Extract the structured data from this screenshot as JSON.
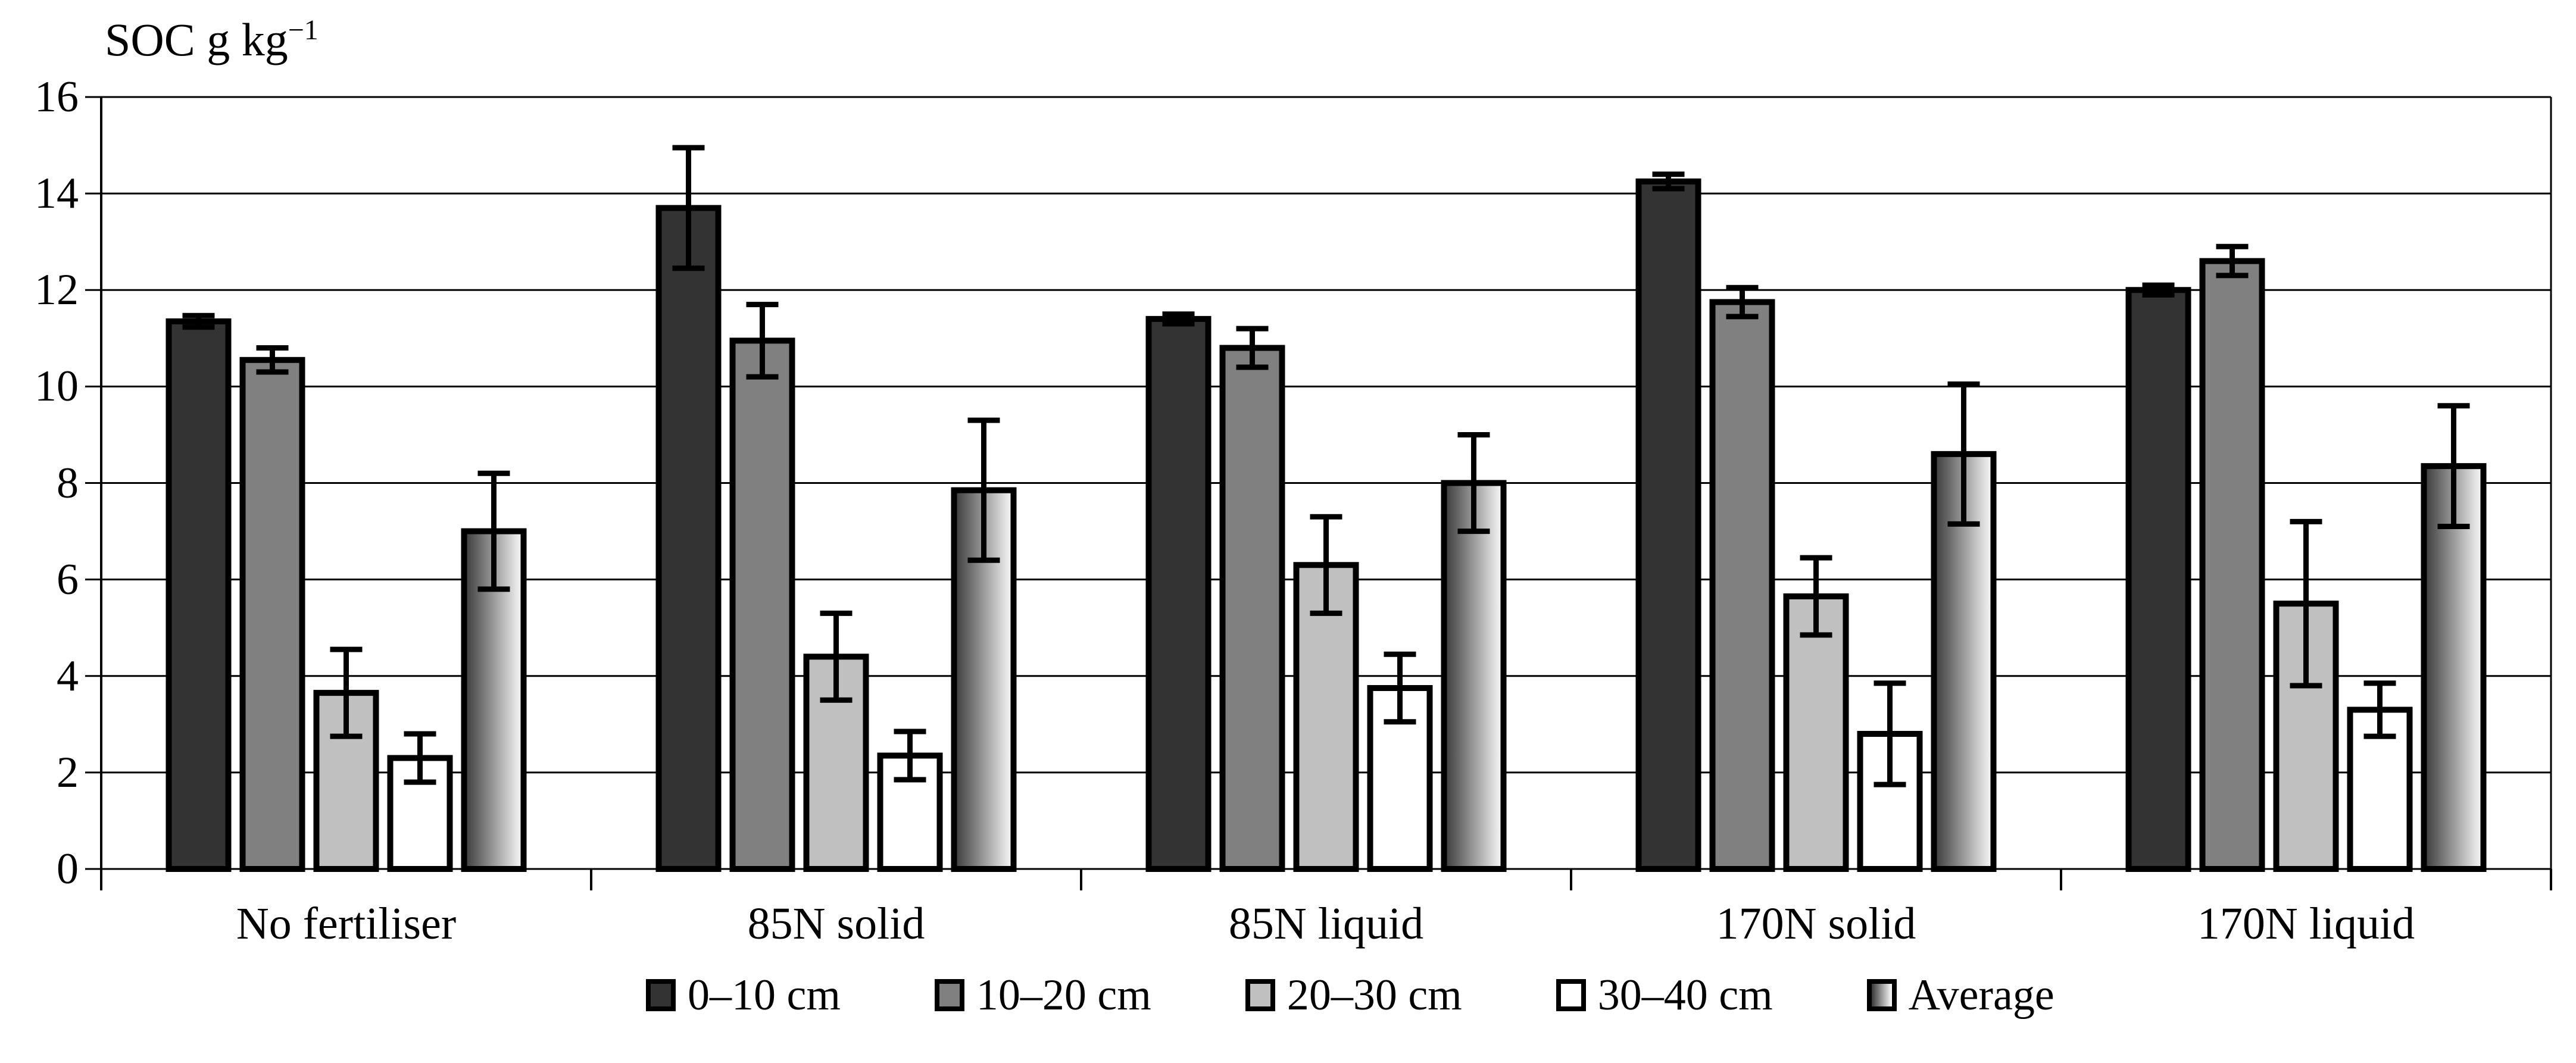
{
  "page": {
    "background": "#ffffff"
  },
  "chart_data": {
    "type": "bar",
    "title": "",
    "ylabel": "SOC g kg",
    "ylabel_superscript": "−1",
    "xlabel": "",
    "ylim": [
      0,
      16
    ],
    "yticks": [
      0,
      2,
      4,
      6,
      8,
      10,
      12,
      14,
      16
    ],
    "grid": "horizontal",
    "legend_position": "bottom",
    "error_bars": true,
    "categories": [
      "No fertiliser",
      "85N solid",
      "85N liquid",
      "170N solid",
      "170N liquid"
    ],
    "series": [
      {
        "name": "0–10 cm",
        "color": "#333333",
        "values": [
          11.35,
          13.7,
          11.4,
          14.25,
          12.0
        ],
        "errors": [
          0.12,
          1.25,
          0.1,
          0.15,
          0.1
        ]
      },
      {
        "name": "10–20 cm",
        "color": "#808080",
        "values": [
          10.55,
          10.95,
          10.8,
          11.75,
          12.6
        ],
        "errors": [
          0.25,
          0.75,
          0.4,
          0.3,
          0.3
        ]
      },
      {
        "name": "20–30 cm",
        "color": "#c0c0c0",
        "values": [
          3.65,
          4.4,
          6.3,
          5.65,
          5.5
        ],
        "errors": [
          0.9,
          0.9,
          1.0,
          0.8,
          1.7
        ]
      },
      {
        "name": "30–40 cm",
        "color": "#ffffff",
        "values": [
          2.3,
          2.35,
          3.75,
          2.8,
          3.3
        ],
        "errors": [
          0.5,
          0.5,
          0.7,
          1.05,
          0.55
        ]
      },
      {
        "name": "Average",
        "color": "gradient",
        "values": [
          7.0,
          7.85,
          8.0,
          8.6,
          8.35
        ],
        "errors": [
          1.2,
          1.45,
          1.0,
          1.45,
          1.25
        ]
      }
    ]
  },
  "colors": {
    "bar_border": "#000000",
    "grid_line": "#000000",
    "error_bar": "#000000",
    "gradient_start": "#383838",
    "gradient_end": "#fdfdfd"
  }
}
